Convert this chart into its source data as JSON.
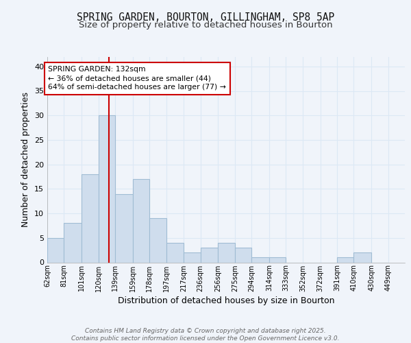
{
  "title1": "SPRING GARDEN, BOURTON, GILLINGHAM, SP8 5AP",
  "title2": "Size of property relative to detached houses in Bourton",
  "xlabel": "Distribution of detached houses by size in Bourton",
  "ylabel": "Number of detached properties",
  "bin_labels": [
    "62sqm",
    "81sqm",
    "101sqm",
    "120sqm",
    "139sqm",
    "159sqm",
    "178sqm",
    "197sqm",
    "217sqm",
    "236sqm",
    "256sqm",
    "275sqm",
    "294sqm",
    "314sqm",
    "333sqm",
    "352sqm",
    "372sqm",
    "391sqm",
    "410sqm",
    "430sqm",
    "449sqm"
  ],
  "bin_edges": [
    62,
    81,
    101,
    120,
    139,
    159,
    178,
    197,
    217,
    236,
    256,
    275,
    294,
    314,
    333,
    352,
    372,
    391,
    410,
    430,
    449
  ],
  "heights": [
    5,
    8,
    18,
    30,
    14,
    17,
    9,
    4,
    2,
    3,
    4,
    3,
    1,
    1,
    0,
    0,
    0,
    1,
    2,
    0
  ],
  "bar_color": "#cfdded",
  "bar_edge_color": "#a0bcd4",
  "vline_x": 132,
  "vline_color": "#cc0000",
  "annotation_line1": "SPRING GARDEN: 132sqm",
  "annotation_line2": "← 36% of detached houses are smaller (44)",
  "annotation_line3": "64% of semi-detached houses are larger (77) →",
  "annotation_box_color": "#ffffff",
  "annotation_box_edge_color": "#cc0000",
  "ylim": [
    0,
    42
  ],
  "yticks": [
    0,
    5,
    10,
    15,
    20,
    25,
    30,
    35,
    40
  ],
  "footer": "Contains HM Land Registry data © Crown copyright and database right 2025.\nContains public sector information licensed under the Open Government Licence v3.0.",
  "bg_color": "#f0f4fa",
  "grid_color": "#dce8f5",
  "title_fontsize": 10.5,
  "subtitle_fontsize": 9.5
}
